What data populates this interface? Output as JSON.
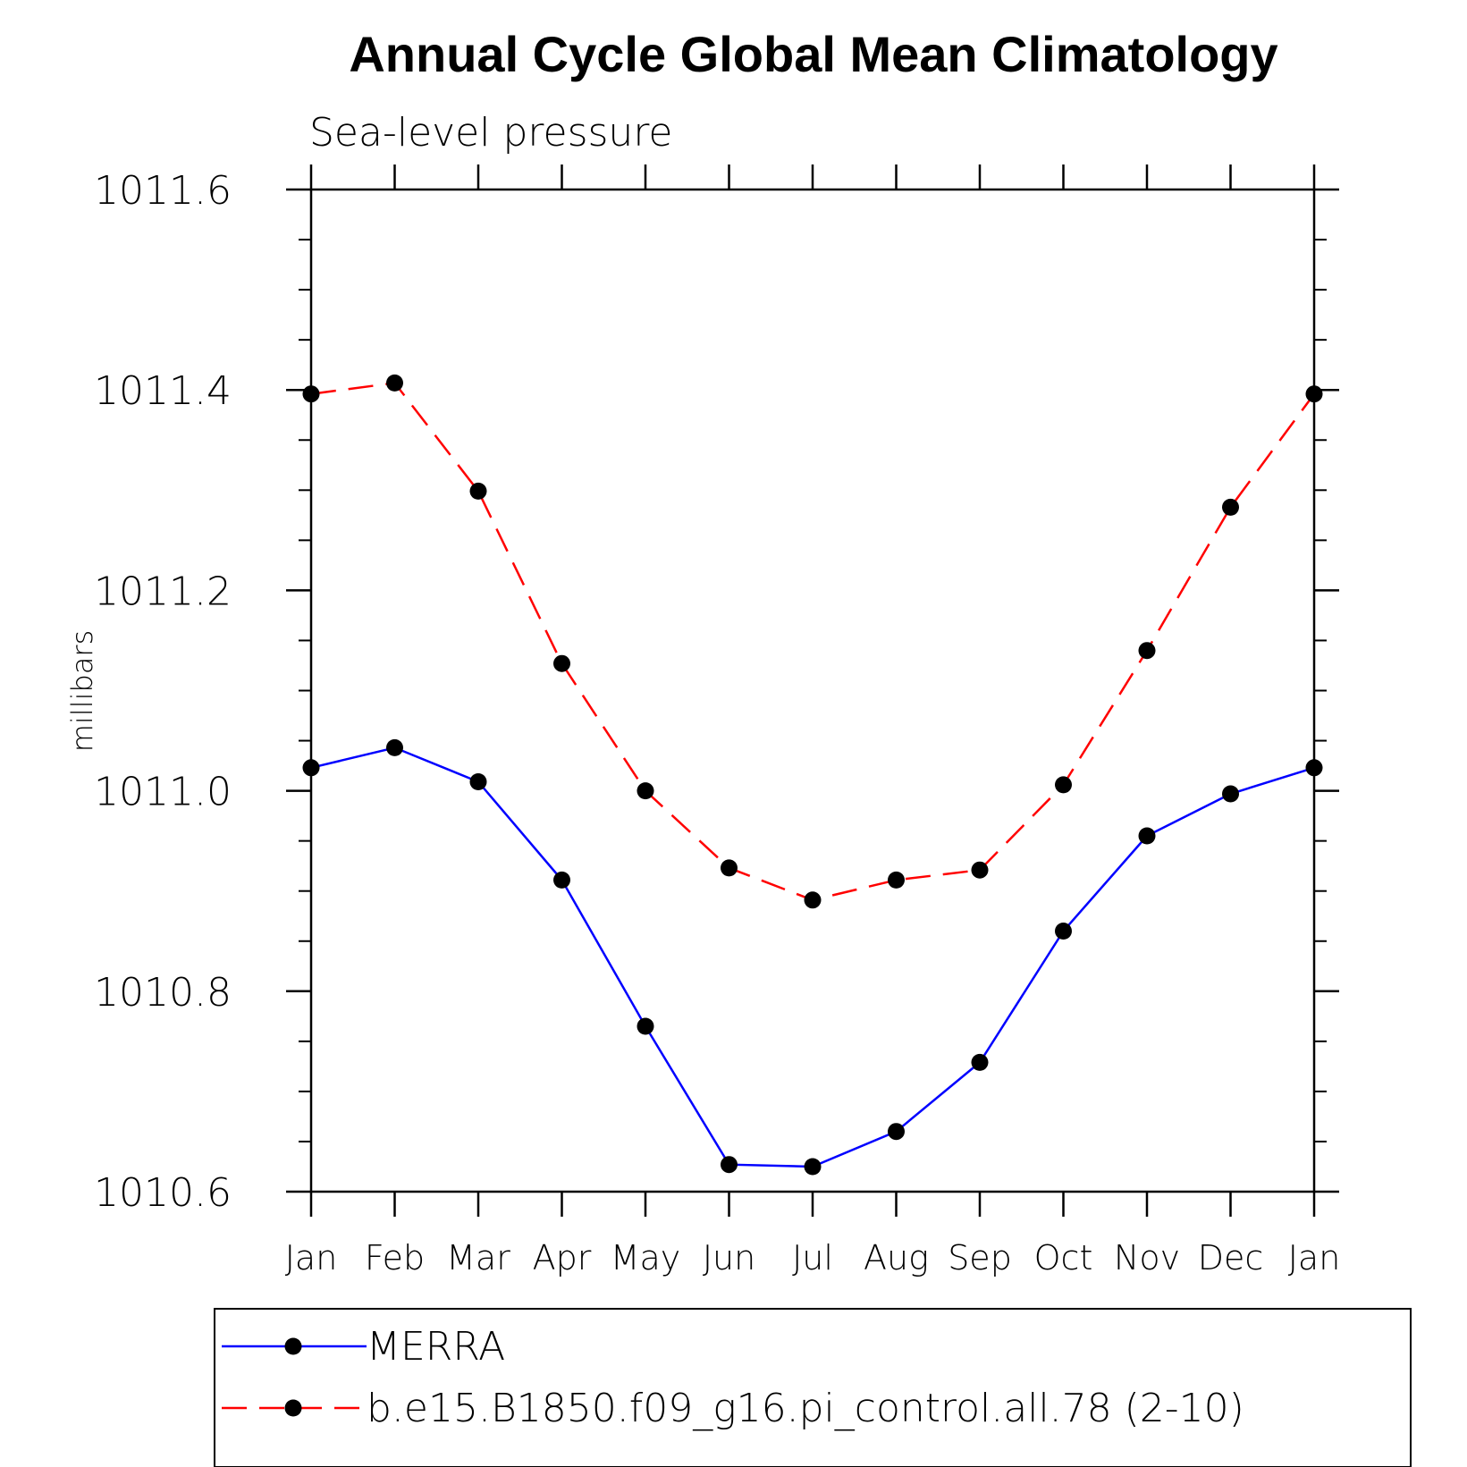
{
  "chart_data": {
    "type": "line",
    "title": "Annual Cycle Global Mean Climatology",
    "subtitle": "Sea-level pressure",
    "ylabel": "millibars",
    "xlabel": "",
    "categories": [
      "Jan",
      "Feb",
      "Mar",
      "Apr",
      "May",
      "Jun",
      "Jul",
      "Aug",
      "Sep",
      "Oct",
      "Nov",
      "Dec",
      "Jan"
    ],
    "ylim": [
      1010.6,
      1011.6
    ],
    "yticks": [
      "1010.6",
      "1010.8",
      "1011.0",
      "1011.2",
      "1011.4",
      "1011.6"
    ],
    "yminor_step": 0.05,
    "grid": false,
    "legend_position": "bottom",
    "series": [
      {
        "name": "MERRA",
        "color": "#0000ff",
        "style": "solid",
        "marker": "filled-circle",
        "values": [
          1011.023,
          1011.043,
          1011.009,
          1010.911,
          1010.765,
          1010.627,
          1010.625,
          1010.66,
          1010.729,
          1010.86,
          1010.955,
          1010.997,
          1011.023
        ]
      },
      {
        "name": "b.e15.B1850.f09_g16.pi_control.all.78 (2-10)",
        "color": "#ff0000",
        "style": "dashed",
        "marker": "filled-circle",
        "values": [
          1011.396,
          1011.407,
          1011.299,
          1011.127,
          1011.0,
          1010.923,
          1010.891,
          1010.911,
          1010.921,
          1011.006,
          1011.14,
          1011.283,
          1011.396
        ]
      }
    ]
  }
}
